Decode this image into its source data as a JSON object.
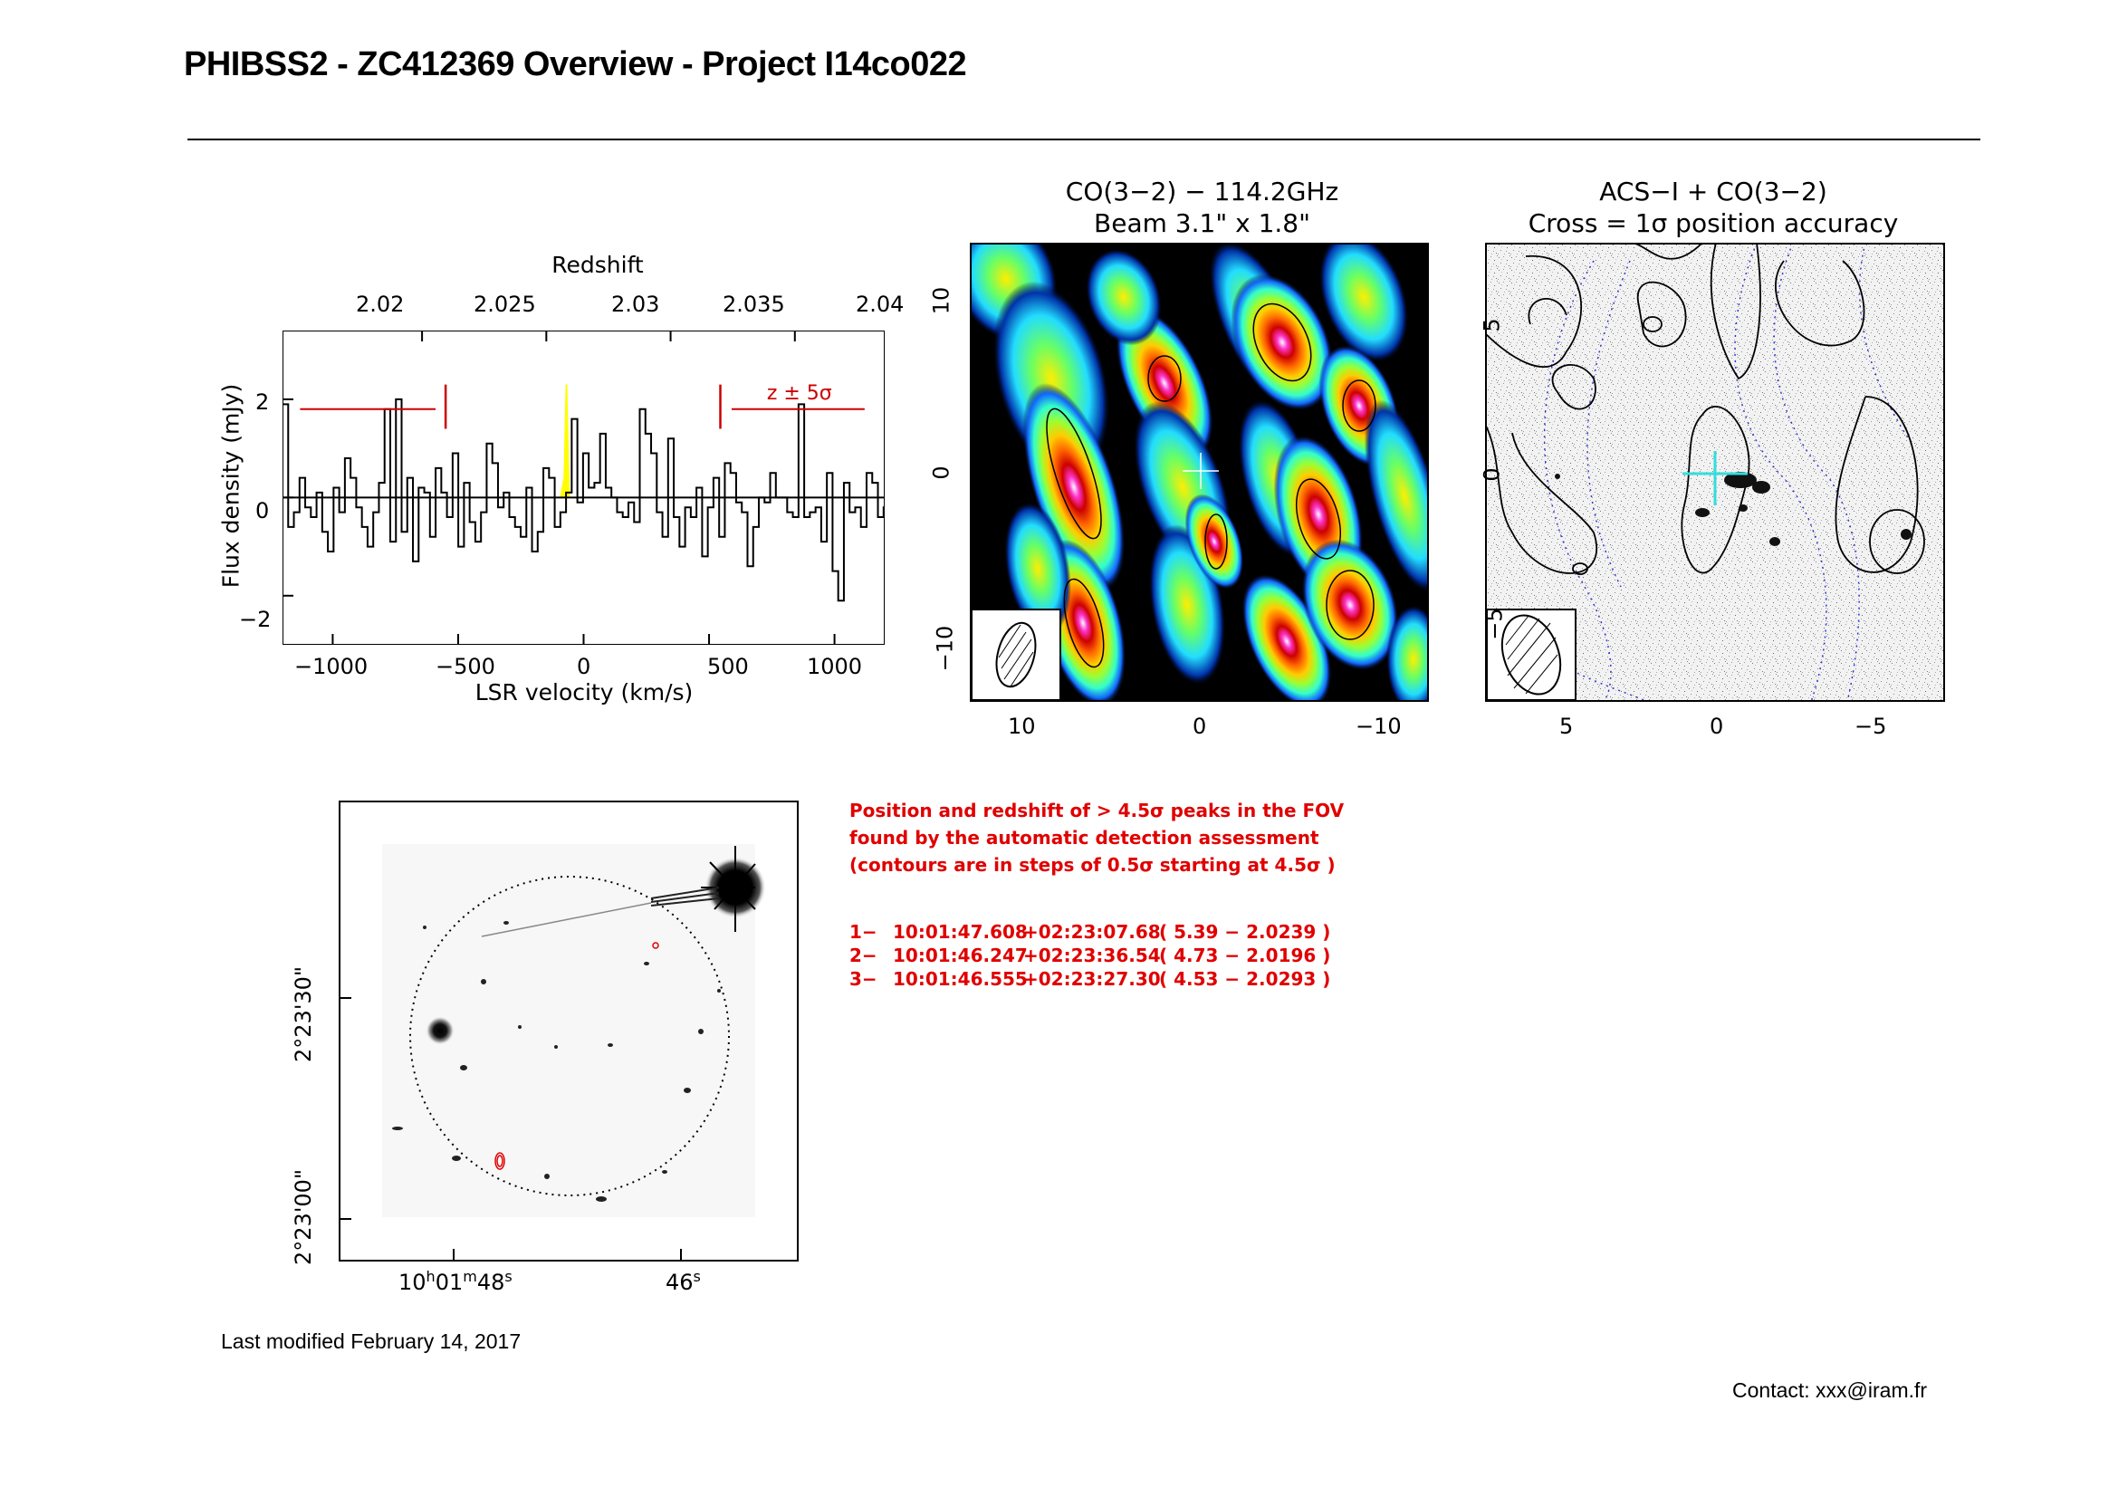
{
  "title": "PHIBSS2 - ZC412369 Overview - Project I14co022",
  "spectrum": {
    "top_label": "Redshift",
    "top_ticks": [
      "2.02",
      "2.025",
      "2.03",
      "2.035",
      "2.04"
    ],
    "xlabel": "LSR velocity (km/s)",
    "ylabel": "Flux density (mJy)",
    "x_ticks": [
      "−1000",
      "−500",
      "0",
      "500",
      "1000"
    ],
    "y_ticks": [
      "2",
      "0",
      "−2"
    ],
    "z_label": "z ± 5σ",
    "line_color": "#000000",
    "highlight_color": "#ffff00",
    "marker_color": "#cc0000"
  },
  "co_map": {
    "title_line1": "CO(3−2) − 114.2GHz",
    "title_line2": "Beam 3.1\" x 1.8\"",
    "x_ticks": [
      "10",
      "0",
      "−10"
    ],
    "y_ticks": [
      "10",
      "0",
      "−10"
    ]
  },
  "acs_map": {
    "title_line1": "ACS−I + CO(3−2)",
    "title_line2": "Cross = 1σ position accuracy",
    "x_ticks": [
      "5",
      "0",
      "−5"
    ],
    "y_ticks": [
      "5",
      "0",
      "−5"
    ],
    "cross_color": "#33dddd",
    "dotted_color": "#3333cc"
  },
  "field_map": {
    "dec_ticks": [
      "2°23'30\"",
      "2°23'00\""
    ],
    "ra_tick_1": {
      "h": "10",
      "hs": "h",
      "m": "01",
      "ms": "m",
      "s": "48",
      "ss": "s"
    },
    "ra_tick_2": {
      "s": "46",
      "ss": "s"
    }
  },
  "detection": {
    "note_lines": [
      "Position and redshift of > 4.5σ peaks in the FOV",
      "found by the automatic detection assessment",
      "(contours are in steps of 0.5σ starting at 4.5σ )"
    ],
    "peaks": [
      {
        "id": "1−",
        "ra": "10:01:47.608",
        "dec": "+02:23:07.68",
        "info": "( 5.39 − 2.0239 )"
      },
      {
        "id": "2−",
        "ra": "10:01:46.247",
        "dec": "+02:23:36.54",
        "info": "( 4.73 − 2.0196 )"
      },
      {
        "id": "3−",
        "ra": "10:01:46.555",
        "dec": "+02:23:27.30",
        "info": "( 4.53 − 2.0293 )"
      }
    ],
    "color": "#e00000"
  },
  "footer": {
    "modified": "Last modified February 14, 2017",
    "contact": "Contact: xxx@iram.fr"
  },
  "chart_data": {
    "type": "line",
    "title": "",
    "xlabel": "LSR velocity (km/s)",
    "ylabel": "Flux density (mJy)",
    "secondary_xlabel": "Redshift",
    "xlim": [
      -1200,
      1200
    ],
    "ylim": [
      -3,
      3.4
    ],
    "step": true,
    "x_start": -1200,
    "x_step": 22.6,
    "series": [
      {
        "values": [
          1.9,
          -0.6,
          -0.3,
          0.4,
          -0.2,
          -0.4,
          0.1,
          -0.7,
          -1.1,
          0.2,
          -0.3,
          0.8,
          0.4,
          -0.2,
          -0.6,
          -1.0,
          -0.3,
          0.3,
          1.8,
          -0.9,
          2.0,
          -0.7,
          0.4,
          -1.3,
          0.2,
          0.1,
          -0.8,
          0.6,
          0.1,
          -0.4,
          0.9,
          -1.0,
          0.3,
          -0.5,
          -0.9,
          -0.3,
          1.1,
          0.7,
          -0.2,
          0.1,
          -0.4,
          -0.6,
          -0.8,
          0.2,
          -1.1,
          -0.7,
          0.6,
          0.4,
          -0.6,
          -0.3,
          0.1,
          1.6,
          -0.1,
          0.9,
          0.2,
          0.3,
          1.3,
          0.2,
          0.0,
          -0.3,
          -0.4,
          -0.1,
          -0.5,
          1.8,
          1.3,
          0.9,
          -0.3,
          -0.8,
          1.2,
          -0.4,
          -1.0,
          -0.2,
          -0.4,
          0.2,
          -1.2,
          -0.2,
          0.4,
          -0.8,
          0.7,
          0.5,
          -0.1,
          -0.3,
          -1.4,
          -0.6,
          0.0,
          -0.1,
          0.5,
          0.0,
          0.0,
          -0.3,
          -0.4,
          1.9,
          -0.4,
          -0.3,
          -0.2,
          -0.9,
          0.5,
          -1.5,
          -2.1,
          0.3,
          -0.3,
          -0.2,
          -0.6,
          0.5,
          0.3,
          -0.4,
          -0.2,
          1.4,
          1.0,
          0.6,
          -0.5,
          -0.4,
          -0.2,
          0.9,
          -1.4,
          -0.5,
          -0.8,
          0.1,
          0.4,
          -0.1,
          -0.3,
          -1.0,
          0.4,
          -0.3,
          -0.9,
          0.0,
          -0.1,
          -1.6,
          -0.2,
          0.1,
          0.0,
          0.8,
          1.0,
          0.2,
          -0.6,
          -0.4,
          -0.3,
          -0.2,
          -0.9,
          0.2,
          -0.3,
          -0.4,
          -0.1,
          0.1,
          0.1,
          0.9,
          0.9,
          0.1,
          0.2,
          -0.3,
          -0.2,
          -0.3,
          -0.4,
          -0.3,
          0.1,
          1.4,
          0.1,
          -0.7,
          -0.2,
          -0.4,
          -0.3,
          -0.2,
          0.7,
          1.4,
          0.4,
          -0.5,
          0.4,
          -0.5,
          0.3,
          0.2,
          -1.2,
          -0.2,
          -0.7,
          -0.2,
          -0.9,
          0.8,
          0.2,
          -0.4,
          1.1,
          -0.5,
          0.0,
          1.4,
          0.8,
          -0.6,
          0.6,
          0.4,
          0.6,
          -0.2,
          0.1,
          -0.1,
          0.8,
          2.0,
          1.1
        ]
      }
    ]
  }
}
